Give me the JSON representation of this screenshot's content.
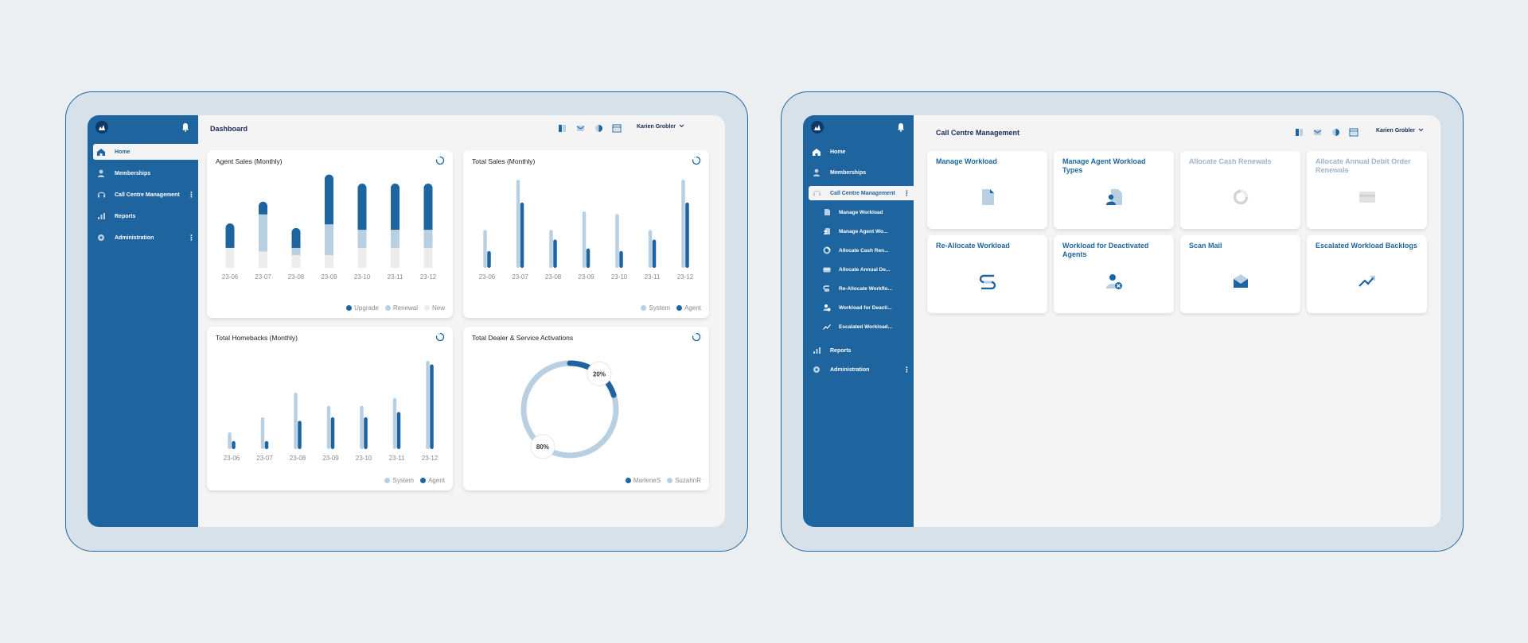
{
  "colors": {
    "dark": "#1e659f",
    "light": "#b9d0e2",
    "pale": "#ececec",
    "frame": "#2565a0"
  },
  "dashboard": {
    "title": "Dashboard",
    "user": "Karien Grobler",
    "sidebar": {
      "items": [
        {
          "label": "Home",
          "icon": "home-icon"
        },
        {
          "label": "Memberships",
          "icon": "person-icon"
        },
        {
          "label": "Call Centre Management",
          "icon": "headset-icon"
        },
        {
          "label": "Reports",
          "icon": "bar-chart-icon"
        },
        {
          "label": "Administration",
          "icon": "gear-icon"
        }
      ]
    },
    "cards": [
      {
        "title": "Agent Sales (Monthly)",
        "legend": [
          "Upgrade",
          "Renewal",
          "New"
        ]
      },
      {
        "title": "Total Sales (Monthly)",
        "legend": [
          "System",
          "Agent"
        ]
      },
      {
        "title": "Total Homebacks (Monthly)",
        "legend": [
          "System",
          "Agent"
        ]
      },
      {
        "title": "Total Dealer & Service Activations",
        "legend": [
          "MarleneS",
          "SuzahnR"
        ]
      }
    ]
  },
  "chart_data": [
    {
      "type": "bar",
      "title": "Agent Sales (Monthly)",
      "categories": [
        "23-06",
        "23-07",
        "23-08",
        "23-09",
        "23-10",
        "23-11",
        "23-12"
      ],
      "series": [
        {
          "name": "New",
          "values": [
            22,
            18,
            14,
            14,
            22,
            22,
            22
          ]
        },
        {
          "name": "Renewal",
          "values": [
            0,
            41,
            8,
            34,
            20,
            20,
            20
          ]
        },
        {
          "name": "Upgrade",
          "values": [
            27,
            14,
            22,
            55,
            51,
            51,
            51
          ]
        }
      ],
      "stacked": true,
      "ylim": [
        0,
        100
      ]
    },
    {
      "type": "bar",
      "title": "Total Sales (Monthly)",
      "categories": [
        "23-06",
        "23-07",
        "23-08",
        "23-09",
        "23-10",
        "23-11",
        "23-12"
      ],
      "series": [
        {
          "name": "System",
          "values": [
            43,
            100,
            43,
            64,
            61,
            43,
            100
          ]
        },
        {
          "name": "Agent",
          "values": [
            19,
            74,
            32,
            22,
            19,
            32,
            74
          ]
        }
      ],
      "ylim": [
        0,
        100
      ]
    },
    {
      "type": "bar",
      "title": "Total Homebacks (Monthly)",
      "categories": [
        "23-06",
        "23-07",
        "23-08",
        "23-09",
        "23-10",
        "23-11",
        "23-12"
      ],
      "series": [
        {
          "name": "System",
          "values": [
            19,
            36,
            64,
            49,
            49,
            58,
            100
          ]
        },
        {
          "name": "Agent",
          "values": [
            9,
            9,
            32,
            36,
            36,
            42,
            96
          ]
        }
      ],
      "ylim": [
        0,
        100
      ]
    },
    {
      "type": "pie",
      "title": "Total Dealer & Service Activations",
      "categories": [
        "MarleneS",
        "SuzahnR"
      ],
      "values": [
        20,
        80
      ],
      "labels": [
        "20%",
        "80%"
      ]
    }
  ],
  "ccm": {
    "title": "Call Centre Management",
    "user": "Karien Grobler",
    "sidebar": {
      "items": [
        {
          "label": "Home",
          "icon": "home-icon"
        },
        {
          "label": "Memberships",
          "icon": "person-icon"
        },
        {
          "label": "Call Centre Management",
          "icon": "headset-icon"
        },
        {
          "label": "Reports",
          "icon": "bar-chart-icon"
        },
        {
          "label": "Administration",
          "icon": "gear-icon"
        }
      ],
      "sub_items": [
        {
          "label": "Manage Workload",
          "icon": "document-icon"
        },
        {
          "label": "Manage Agent Wo...",
          "icon": "agent-document-icon"
        },
        {
          "label": "Allocate Cash Ren...",
          "icon": "donut-icon"
        },
        {
          "label": "Allocate Annual De...",
          "icon": "card-icon"
        },
        {
          "label": "Re-Allocate Workflo...",
          "icon": "reallocate-icon"
        },
        {
          "label": "Workload for Deacti...",
          "icon": "deactivated-agent-icon"
        },
        {
          "label": "Escalated Workload...",
          "icon": "trend-icon"
        }
      ]
    },
    "tiles": [
      {
        "label": "Manage Workload",
        "icon": "document-icon",
        "enabled": true
      },
      {
        "label": "Manage Agent Workload Types",
        "icon": "agent-document-icon",
        "enabled": true
      },
      {
        "label": "Allocate Cash Renewals",
        "icon": "donut-icon",
        "enabled": false
      },
      {
        "label": "Allocate Annual Debit Order Renewals",
        "icon": "card-icon",
        "enabled": false
      },
      {
        "label": "Re-Allocate Workload",
        "icon": "reallocate-icon",
        "enabled": true
      },
      {
        "label": "Workload for Deactivated Agents",
        "icon": "deactivated-agent-icon",
        "enabled": true
      },
      {
        "label": "Scan Mail",
        "icon": "mail-icon",
        "enabled": true
      },
      {
        "label": "Escalated Workload Backlogs",
        "icon": "trend-icon",
        "enabled": true
      }
    ]
  }
}
